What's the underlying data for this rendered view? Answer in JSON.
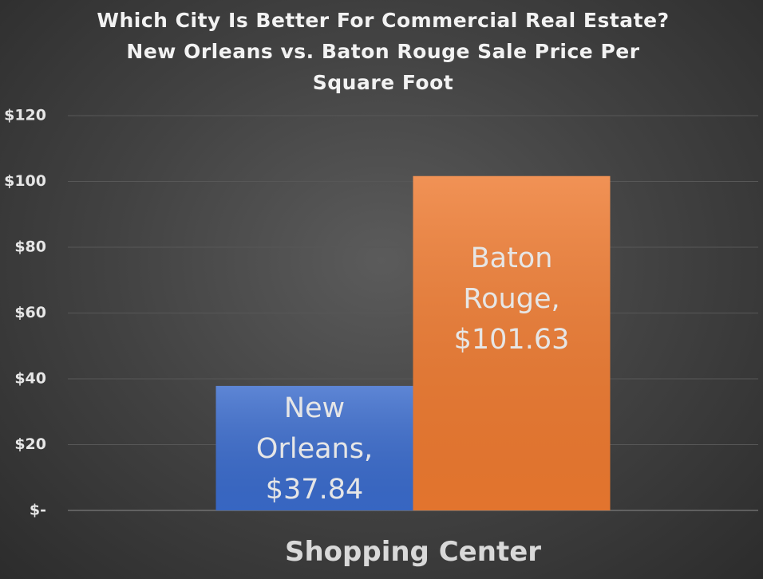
{
  "chart_data": {
    "type": "bar",
    "title": "Which City Is Better For Commercial Real Estate? New Orleans vs. Baton Rouge Sale Price Per Square Foot",
    "categories": [
      "Shopping Center"
    ],
    "series": [
      {
        "color": "#3a6bcc",
        "values": [
          37.84
        ],
        "value_labels": [
          "New Orleans, $37.84"
        ]
      },
      {
        "color": "#ee7a30",
        "values": [
          101.63
        ],
        "value_labels": [
          "Baton Rouge, $101.63"
        ]
      }
    ],
    "ylim": [
      0,
      120
    ],
    "yticks": [
      {
        "value": 0,
        "label": "$-"
      },
      {
        "value": 20,
        "label": "$20"
      },
      {
        "value": 40,
        "label": "$40"
      },
      {
        "value": 60,
        "label": "$60"
      },
      {
        "value": 80,
        "label": "$80"
      },
      {
        "value": 100,
        "label": "$100"
      },
      {
        "value": 120,
        "label": "$120"
      }
    ],
    "grid": true
  }
}
